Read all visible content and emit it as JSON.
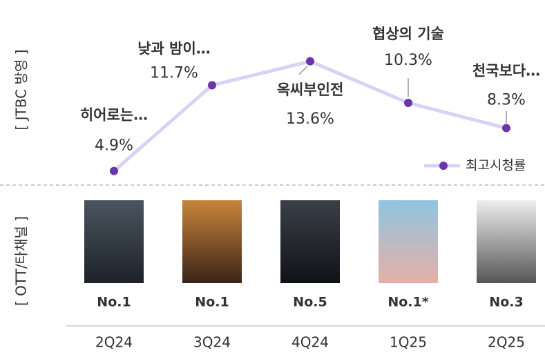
{
  "chart_data": {
    "type": "line",
    "categories": [
      "2Q24",
      "3Q24",
      "4Q24",
      "1Q25",
      "2Q25"
    ],
    "series": [
      {
        "name": "최고시청률",
        "color": "#6a35a8",
        "line_color": "#d8d2f4",
        "values": [
          4.9,
          11.7,
          13.6,
          10.3,
          8.3
        ],
        "value_labels": [
          "4.9%",
          "11.7%",
          "13.6%",
          "10.3%",
          "8.3%"
        ]
      }
    ],
    "annotations": [
      "히어로는…",
      "낮과 밤이…",
      "옥씨부인전",
      "협상의 기술",
      "천국보다…"
    ],
    "ranks": [
      "No.1",
      "No.1",
      "No.5",
      "No.1*",
      "No.3"
    ],
    "section_labels": [
      "[ JTBC 방영 ]",
      "[ OTT/타채널 ]"
    ],
    "ylim": [
      0,
      16
    ]
  }
}
